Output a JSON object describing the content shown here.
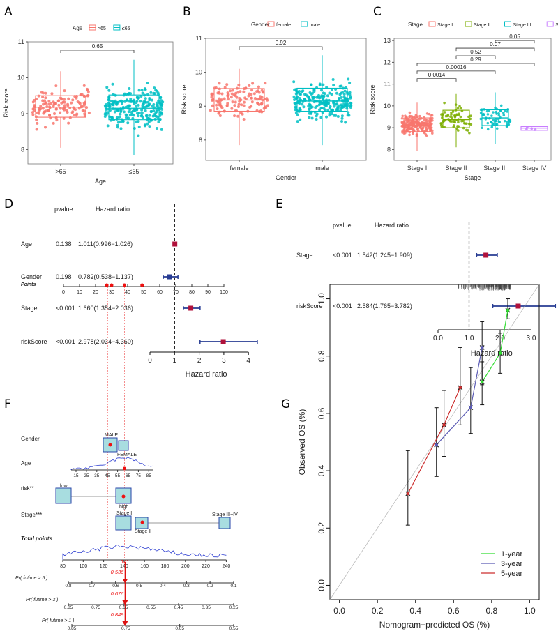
{
  "chart_data": [
    {
      "panel": "A",
      "type": "scatter",
      "title": "",
      "legend": {
        "title": "Age",
        "entries": [
          ">65",
          "≤65"
        ],
        "colors": [
          "#F8766D",
          "#00BFC4"
        ]
      },
      "categories": [
        ">65",
        "≤65"
      ],
      "xlabel": "Age",
      "ylabel": "Risk score",
      "ylim": [
        7.6,
        11
      ],
      "yticks": [
        8,
        9,
        10,
        11
      ],
      "boxes": [
        {
          "name": ">65",
          "min": 8.05,
          "q1": 8.9,
          "median": 9.18,
          "q3": 9.5,
          "max": 10.18
        },
        {
          "name": "≤65",
          "min": 7.85,
          "q1": 8.83,
          "median": 9.15,
          "q3": 9.52,
          "max": 10.5
        }
      ],
      "pvalues": [
        {
          "from": 0,
          "to": 1,
          "label": "0.65"
        }
      ]
    },
    {
      "panel": "B",
      "type": "scatter",
      "legend": {
        "title": "Gender",
        "entries": [
          "female",
          "male"
        ],
        "colors": [
          "#F8766D",
          "#00BFC4"
        ]
      },
      "categories": [
        "female",
        "male"
      ],
      "xlabel": "Gender",
      "ylabel": "Risk score",
      "ylim": [
        7.4,
        11
      ],
      "yticks": [
        8,
        9,
        10,
        11
      ],
      "boxes": [
        {
          "name": "female",
          "min": 7.85,
          "q1": 8.85,
          "median": 9.18,
          "q3": 9.52,
          "max": 10.1
        },
        {
          "name": "male",
          "min": 7.85,
          "q1": 8.85,
          "median": 9.15,
          "q3": 9.53,
          "max": 10.5
        }
      ],
      "pvalues": [
        {
          "from": 0,
          "to": 1,
          "label": "0.92"
        }
      ]
    },
    {
      "panel": "C",
      "type": "scatter",
      "legend": {
        "title": "Stage",
        "entries": [
          "Stage I",
          "Stage II",
          "Stage III",
          "Stage IV"
        ],
        "colors": [
          "#F8766D",
          "#7CAE00",
          "#00BFC4",
          "#C77CFF"
        ]
      },
      "categories": [
        "Stage I",
        "Stage II",
        "Stage III",
        "Stage IV"
      ],
      "xlabel": "Stage",
      "ylabel": "Risk score",
      "ylim": [
        7.5,
        13.1
      ],
      "yticks": [
        8,
        9,
        10,
        11,
        12,
        13
      ],
      "boxes": [
        {
          "name": "Stage I",
          "min": 7.95,
          "q1": 8.82,
          "median": 9.12,
          "q3": 9.45,
          "max": 10.15
        },
        {
          "name": "Stage II",
          "min": 8.1,
          "q1": 9.0,
          "median": 9.37,
          "q3": 9.8,
          "max": 10.55
        },
        {
          "name": "Stage III",
          "min": 8.25,
          "q1": 9.1,
          "median": 9.45,
          "q3": 9.82,
          "max": 10.62
        },
        {
          "name": "Stage IV",
          "min": 8.85,
          "q1": 8.88,
          "median": 8.98,
          "q3": 9.05,
          "max": 9.08
        }
      ],
      "pvalues": [
        {
          "from": 0,
          "to": 1,
          "label": "0.0014",
          "y": 11.25
        },
        {
          "from": 0,
          "to": 2,
          "label": "0.00016",
          "y": 11.6
        },
        {
          "from": 0,
          "to": 3,
          "label": "0.29",
          "y": 11.95
        },
        {
          "from": 1,
          "to": 2,
          "label": "0.52",
          "y": 12.3
        },
        {
          "from": 1,
          "to": 3,
          "label": "0.07",
          "y": 12.65
        },
        {
          "from": 2,
          "to": 3,
          "label": "0.05",
          "y": 13.0
        }
      ]
    },
    {
      "panel": "D",
      "type": "forest",
      "headers": {
        "pvalue": "pvalue",
        "hr": "Hazard ratio"
      },
      "rows": [
        {
          "name": "Age",
          "pvalue": "0.138",
          "text": "1.011(0.996−1.026)",
          "hr": 1.011,
          "lo": 0.996,
          "hi": 1.026,
          "color": "#B0113B"
        },
        {
          "name": "Gender",
          "pvalue": "0.198",
          "text": "0.782(0.538−1.137)",
          "hr": 0.782,
          "lo": 0.538,
          "hi": 1.137,
          "color": "#273C93"
        },
        {
          "name": "Stage",
          "pvalue": "<0.001",
          "text": "1.660(1.354−2.036)",
          "hr": 1.66,
          "lo": 1.354,
          "hi": 2.036,
          "color": "#B0113B"
        },
        {
          "name": "riskScore",
          "pvalue": "<0.001",
          "text": "2.978(2.034−4.360)",
          "hr": 2.978,
          "lo": 2.034,
          "hi": 4.36,
          "color": "#B0113B"
        }
      ],
      "xlim": [
        0,
        4.4
      ],
      "xticks": [
        "0",
        "1",
        "2",
        "3",
        "4"
      ],
      "xlabel": "Hazard ratio",
      "refline": 1
    },
    {
      "panel": "E",
      "type": "forest",
      "headers": {
        "pvalue": "pvalue",
        "hr": "Hazard ratio"
      },
      "rows": [
        {
          "name": "Stage",
          "pvalue": "<0.001",
          "text": "1.542(1.245−1.909)",
          "hr": 1.542,
          "lo": 1.245,
          "hi": 1.909,
          "color": "#B0113B"
        },
        {
          "name": "riskScore",
          "pvalue": "<0.001",
          "text": "2.584(1.765−3.782)",
          "hr": 2.584,
          "lo": 1.765,
          "hi": 3.782,
          "color": "#B0113B"
        }
      ],
      "xlim": [
        0,
        3.8
      ],
      "xticks": [
        "0.0",
        "1.0",
        "2.0",
        "3.0"
      ],
      "xlabel": "Hazard ratio",
      "refline": 1
    },
    {
      "panel": "F",
      "type": "nomogram",
      "rows": [
        {
          "name": "Points",
          "ticks": [
            "0",
            "10",
            "20",
            "30",
            "40",
            "50",
            "60",
            "70",
            "80",
            "90",
            "100"
          ]
        },
        {
          "name": "Gender",
          "labels": [
            "MALE",
            "FEMALE"
          ]
        },
        {
          "name": "Age",
          "ticks": [
            "15",
            "25",
            "35",
            "45",
            "55",
            "65",
            "75",
            "85"
          ]
        },
        {
          "name": "risk**",
          "labels": [
            "low",
            "high"
          ]
        },
        {
          "name": "Stage***",
          "labels": [
            "Stage I",
            "Stage II",
            "Stage III~IV"
          ]
        },
        {
          "name": "Total points",
          "ticks": [
            "80",
            "100",
            "120",
            "140",
            "160",
            "180",
            "200",
            "220",
            "240"
          ],
          "value": "141"
        },
        {
          "name": "Pr( futime > 5 )",
          "ticks": [
            "0.8",
            "0.7",
            "0.6",
            "0.5",
            "0.4",
            "0.3",
            "0.2",
            "0.1"
          ],
          "value": "0.536"
        },
        {
          "name": "Pr( futime > 3 )",
          "ticks": [
            "0.85",
            "0.75",
            "0.65",
            "0.55",
            "0.45",
            "0.35",
            "0.25"
          ],
          "value": "0.676"
        },
        {
          "name": "Pr( futime > 1 )",
          "ticks": [
            "0.85",
            "0.75",
            "0.65",
            "0.55"
          ],
          "value": "0.849"
        }
      ]
    },
    {
      "panel": "G",
      "type": "line",
      "xlabel": "Nomogram−predicted OS (%)",
      "ylabel": "Observed OS (%)",
      "xlim": [
        -0.05,
        1.05
      ],
      "ylim": [
        -0.05,
        1.05
      ],
      "xticks": [
        "0.0",
        "0.2",
        "0.4",
        "0.6",
        "0.8",
        "1.0"
      ],
      "yticks": [
        "0.0",
        "0.2",
        "0.4",
        "0.6",
        "0.8",
        "1.0"
      ],
      "series": [
        {
          "name": "1-year",
          "color": "#33DD33",
          "points": [
            [
              0.75,
              0.71
            ],
            [
              0.845,
              0.81
            ],
            [
              0.885,
              0.96
            ]
          ]
        },
        {
          "name": "3-year",
          "color": "#5A5AB4",
          "points": [
            [
              0.51,
              0.49
            ],
            [
              0.69,
              0.62
            ],
            [
              0.75,
              0.83
            ]
          ]
        },
        {
          "name": "5-year",
          "color": "#CC2E2E",
          "points": [
            [
              0.36,
              0.32
            ],
            [
              0.55,
              0.56
            ],
            [
              0.635,
              0.69
            ]
          ]
        }
      ],
      "errors": [
        [
          0.36,
          0.32,
          0.21,
          0.47
        ],
        [
          0.51,
          0.49,
          0.38,
          0.62
        ],
        [
          0.55,
          0.56,
          0.45,
          0.68
        ],
        [
          0.635,
          0.69,
          0.56,
          0.83
        ],
        [
          0.69,
          0.62,
          0.53,
          0.76
        ],
        [
          0.75,
          0.83,
          0.7,
          0.92
        ],
        [
          0.75,
          0.71,
          0.63,
          0.78
        ],
        [
          0.845,
          0.81,
          0.74,
          0.88
        ],
        [
          0.885,
          0.96,
          0.93,
          1.0
        ]
      ]
    }
  ],
  "panel_letters": [
    "A",
    "B",
    "C",
    "D",
    "E",
    "F",
    "G"
  ]
}
